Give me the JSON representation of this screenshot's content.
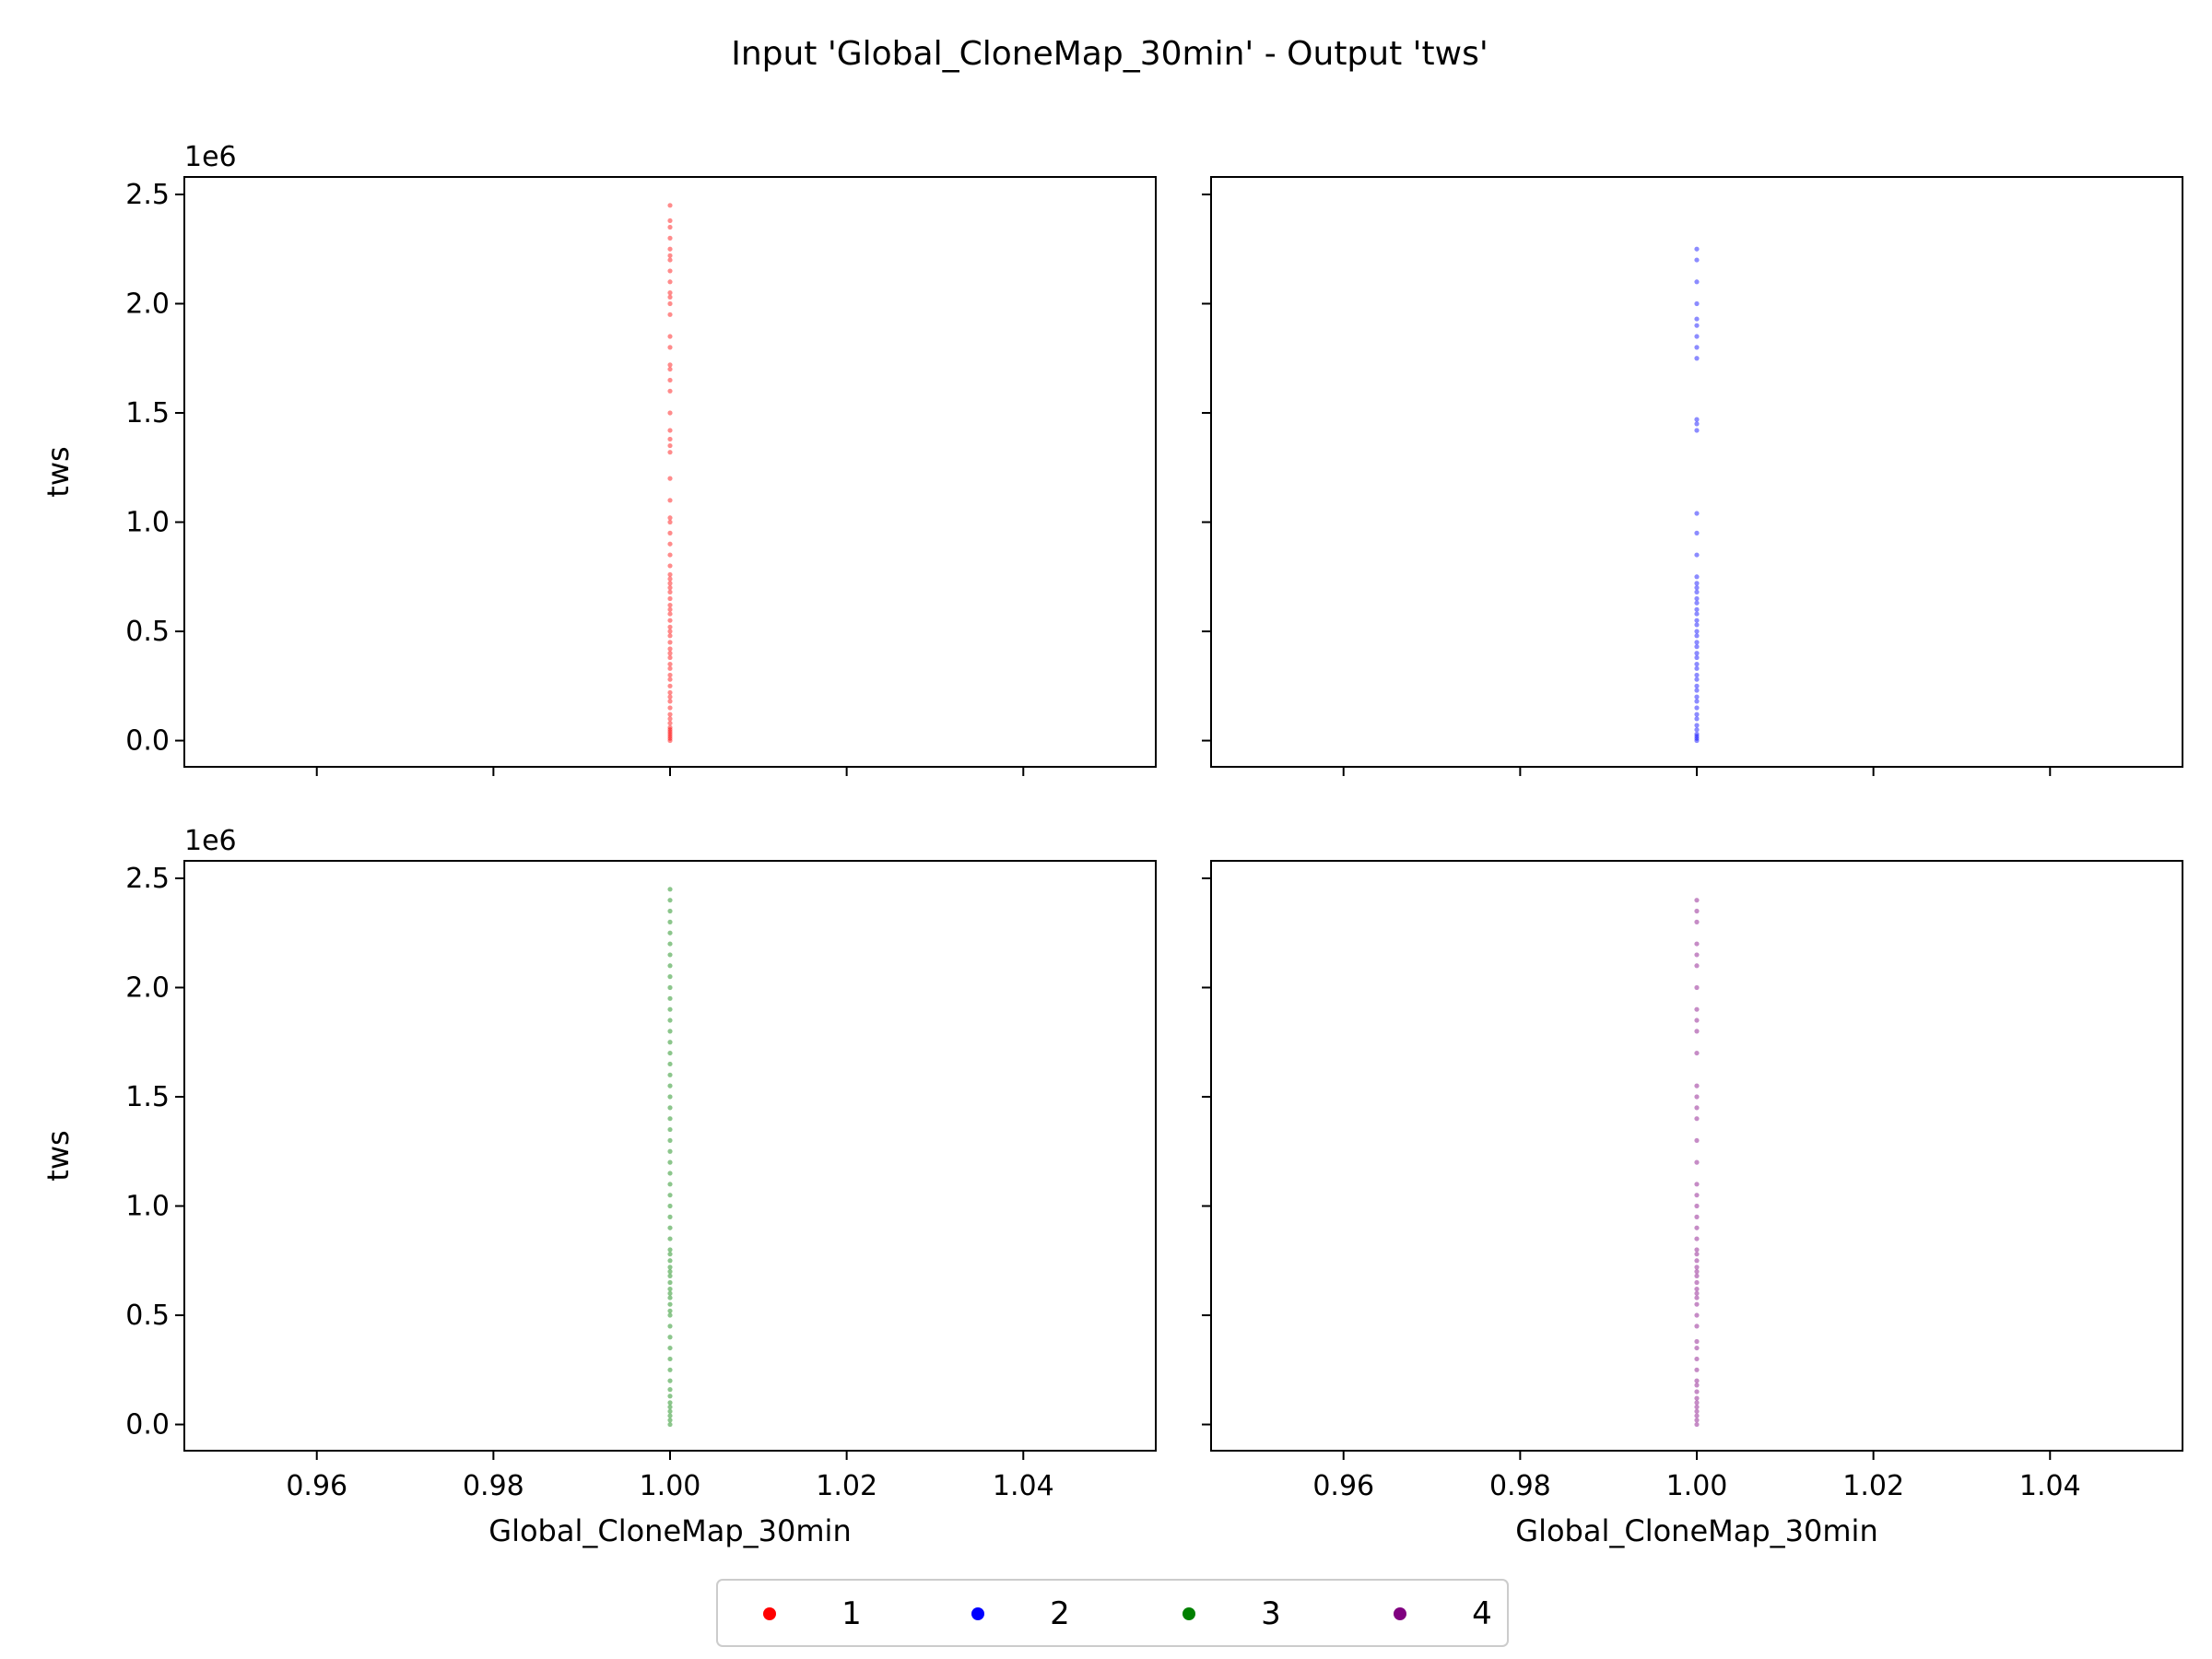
{
  "title": "Input 'Global_CloneMap_30min' - Output 'tws'",
  "chart_data": {
    "type": "scatter",
    "xlabel": "Global_CloneMap_30min",
    "ylabel": "tws",
    "y_offset_label": "1e6",
    "xlim": [
      0.945,
      1.055
    ],
    "ylim": [
      -0.12,
      2.58
    ],
    "x_ticks": [
      "0.96",
      "0.98",
      "1.00",
      "1.02",
      "1.04"
    ],
    "x_tick_values": [
      0.96,
      0.98,
      1.0,
      1.02,
      1.04
    ],
    "y_ticks": [
      "0.0",
      "0.5",
      "1.0",
      "1.5",
      "2.0",
      "2.5"
    ],
    "y_tick_values": [
      0,
      0.5,
      1.0,
      1.5,
      2.0,
      2.5
    ],
    "legend_position": "bottom-center",
    "series": [
      {
        "name": "1",
        "color": "#ff0000",
        "x": 1.0,
        "y": [
          0.0,
          0.01,
          0.02,
          0.03,
          0.04,
          0.05,
          0.06,
          0.08,
          0.1,
          0.12,
          0.15,
          0.18,
          0.2,
          0.22,
          0.25,
          0.28,
          0.3,
          0.33,
          0.35,
          0.38,
          0.4,
          0.42,
          0.45,
          0.48,
          0.5,
          0.52,
          0.55,
          0.58,
          0.6,
          0.62,
          0.65,
          0.68,
          0.7,
          0.72,
          0.74,
          0.76,
          0.8,
          0.85,
          0.9,
          0.95,
          1.0,
          1.02,
          1.1,
          1.2,
          1.32,
          1.35,
          1.38,
          1.42,
          1.5,
          1.6,
          1.65,
          1.7,
          1.72,
          1.8,
          1.85,
          1.95,
          2.0,
          2.03,
          2.05,
          2.1,
          2.15,
          2.2,
          2.22,
          2.25,
          2.3,
          2.35,
          2.38,
          2.45
        ]
      },
      {
        "name": "2",
        "color": "#0000ff",
        "x": 1.0,
        "y": [
          0.0,
          0.01,
          0.02,
          0.03,
          0.05,
          0.07,
          0.1,
          0.12,
          0.15,
          0.18,
          0.2,
          0.23,
          0.25,
          0.28,
          0.3,
          0.33,
          0.35,
          0.38,
          0.4,
          0.43,
          0.45,
          0.48,
          0.5,
          0.53,
          0.55,
          0.58,
          0.6,
          0.63,
          0.65,
          0.68,
          0.7,
          0.72,
          0.75,
          0.85,
          0.95,
          1.04,
          1.42,
          1.45,
          1.47,
          1.75,
          1.8,
          1.85,
          1.9,
          1.93,
          2.0,
          2.1,
          2.2,
          2.25
        ]
      },
      {
        "name": "3",
        "color": "#008000",
        "x": 1.0,
        "y": [
          0.0,
          0.02,
          0.04,
          0.06,
          0.08,
          0.1,
          0.13,
          0.16,
          0.2,
          0.25,
          0.3,
          0.35,
          0.4,
          0.45,
          0.5,
          0.52,
          0.55,
          0.58,
          0.6,
          0.62,
          0.65,
          0.68,
          0.7,
          0.72,
          0.75,
          0.78,
          0.8,
          0.85,
          0.9,
          0.95,
          1.0,
          1.05,
          1.1,
          1.15,
          1.2,
          1.25,
          1.3,
          1.35,
          1.4,
          1.45,
          1.5,
          1.55,
          1.6,
          1.65,
          1.7,
          1.75,
          1.8,
          1.85,
          1.9,
          1.95,
          2.0,
          2.05,
          2.1,
          2.15,
          2.2,
          2.25,
          2.3,
          2.35,
          2.4,
          2.45
        ]
      },
      {
        "name": "4",
        "color": "#800080",
        "x": 1.0,
        "y": [
          0.0,
          0.02,
          0.04,
          0.06,
          0.08,
          0.1,
          0.12,
          0.15,
          0.18,
          0.2,
          0.25,
          0.3,
          0.35,
          0.38,
          0.45,
          0.5,
          0.55,
          0.58,
          0.6,
          0.62,
          0.65,
          0.68,
          0.7,
          0.72,
          0.75,
          0.78,
          0.8,
          0.85,
          0.9,
          0.95,
          1.0,
          1.05,
          1.1,
          1.2,
          1.3,
          1.4,
          1.45,
          1.5,
          1.55,
          1.7,
          1.8,
          1.85,
          1.9,
          2.0,
          2.1,
          2.15,
          2.2,
          2.3,
          2.35,
          2.4
        ]
      }
    ]
  }
}
